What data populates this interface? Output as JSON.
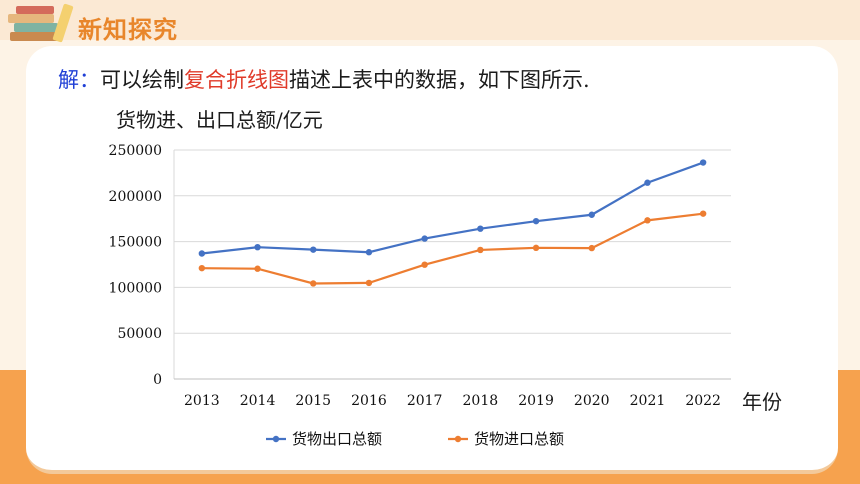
{
  "header": {
    "section_title": "新知探究"
  },
  "solution": {
    "prefix": "解：",
    "text_before": "可以绘制",
    "highlight": "复合折线图",
    "text_after": "描述上表中的数据，如下图所示."
  },
  "colors": {
    "accent": "#e8862b",
    "export": "#4472c4",
    "import": "#ed7d31"
  },
  "chart_data": {
    "type": "line",
    "ylabel": "货物进、出口总额/亿元",
    "xlabel": "年份",
    "categories": [
      "2013",
      "2014",
      "2015",
      "2016",
      "2017",
      "2018",
      "2019",
      "2020",
      "2021",
      "2022"
    ],
    "ylim": [
      0,
      250000
    ],
    "yticks": [
      0,
      50000,
      100000,
      150000,
      200000,
      250000
    ],
    "grid": true,
    "legend_position": "bottom",
    "series": [
      {
        "name": "货物出口总额",
        "color": "#4472c4",
        "values": [
          137000,
          143900,
          141200,
          138400,
          153300,
          164100,
          172300,
          179300,
          214300,
          236300
        ]
      },
      {
        "name": "货物进口总额",
        "color": "#ed7d31",
        "values": [
          121000,
          120400,
          104300,
          104900,
          124800,
          140900,
          143200,
          142900,
          173200,
          180500
        ]
      }
    ]
  }
}
